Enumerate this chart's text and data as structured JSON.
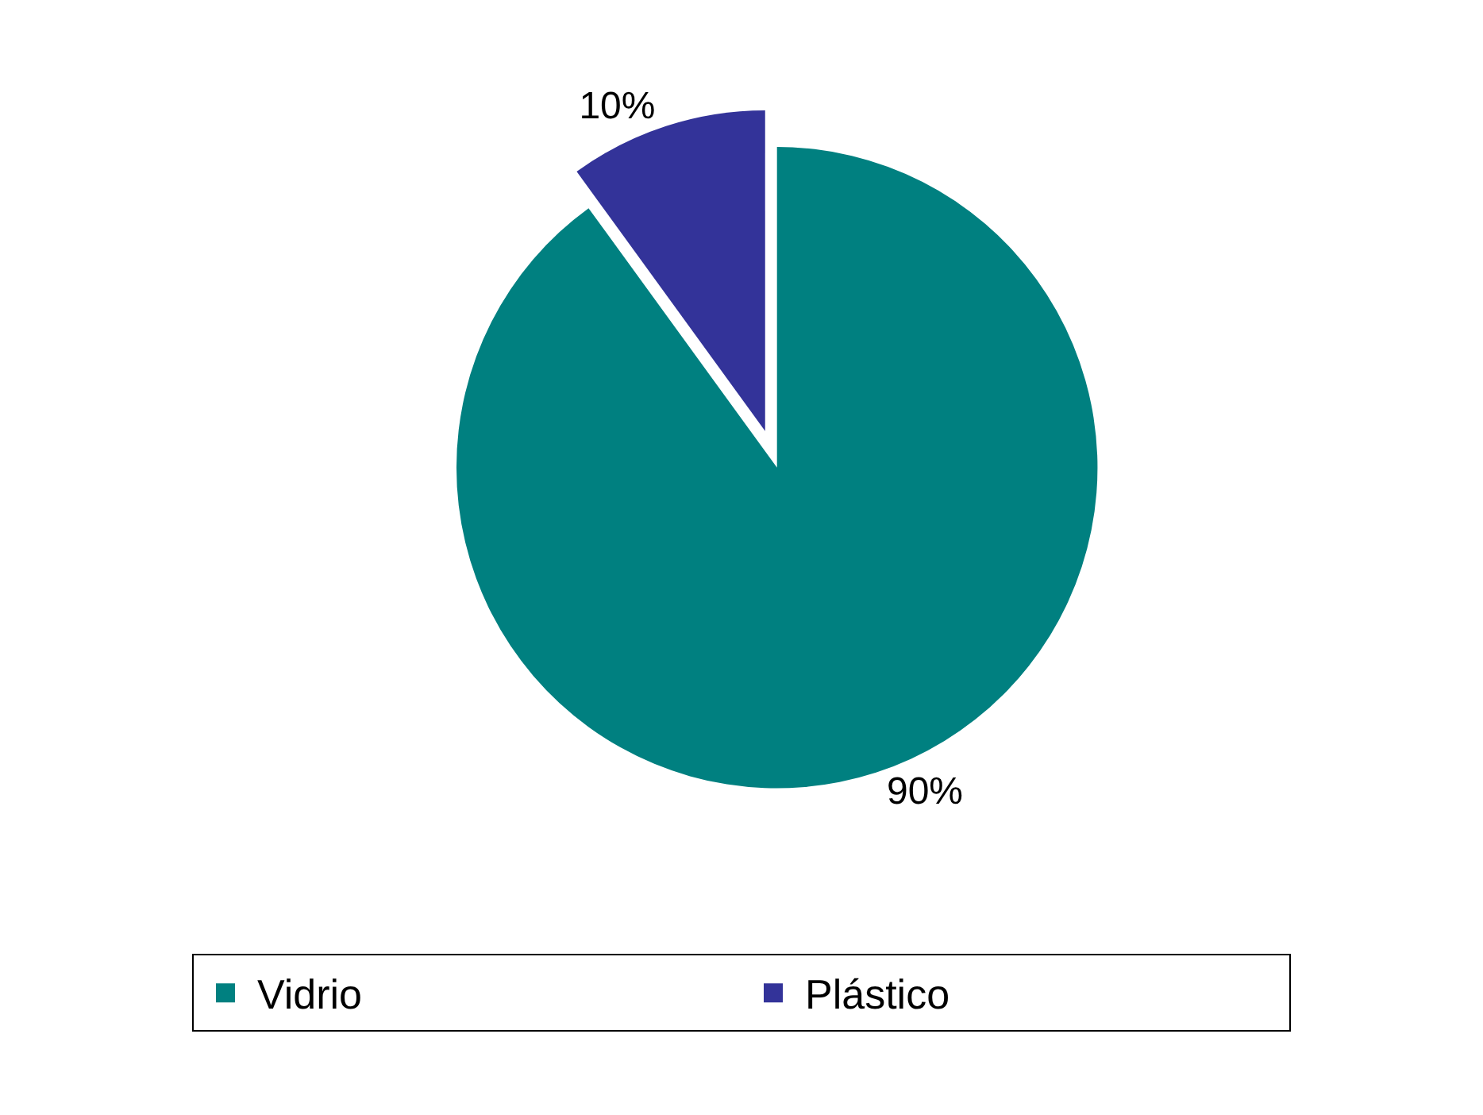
{
  "chart_data": {
    "type": "pie",
    "categories": [
      "Vidrio",
      "Plástico"
    ],
    "values": [
      90,
      10
    ],
    "colors": [
      "#008080",
      "#333399"
    ],
    "value_labels": [
      "90%",
      "10%"
    ],
    "legend": "bottom"
  }
}
